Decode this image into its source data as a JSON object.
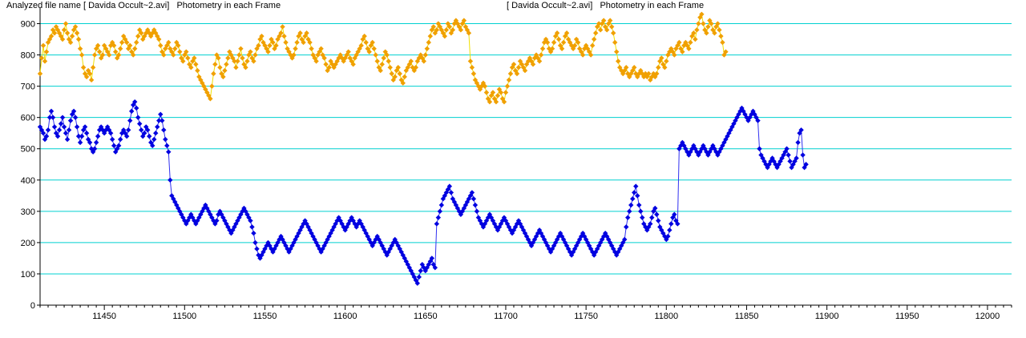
{
  "header": {
    "left": "Analyzed file name [ Davida Occult~2.avi]   Photometry in each Frame",
    "center": "[ Davida Occult~2.avi]   Photometry in each Frame"
  },
  "colors": {
    "grid": "#00d0d0",
    "series_target": "#f0a000",
    "series_target_line": "#f0e000",
    "series_comparison": "#0000e0",
    "series_comparison_line": "#3030f0"
  },
  "chart_data": {
    "type": "scatter",
    "title": "",
    "xlabel": "",
    "ylabel": "",
    "xlim": [
      11410,
      12015
    ],
    "ylim": [
      0,
      950
    ],
    "x_ticks": [
      11450,
      11500,
      11550,
      11600,
      11650,
      11700,
      11750,
      11800,
      11850,
      11900,
      11950,
      12000
    ],
    "y_ticks": [
      0,
      100,
      200,
      300,
      400,
      500,
      600,
      700,
      800,
      900
    ],
    "grid": true,
    "legend": "none",
    "x_start": 11410,
    "x_step": 1,
    "series": [
      {
        "style": "markers-with-line",
        "values": [
          740,
          790,
          830,
          780,
          810,
          840,
          850,
          860,
          880,
          870,
          890,
          880,
          870,
          860,
          850,
          880,
          900,
          870,
          850,
          840,
          860,
          880,
          890,
          870,
          850,
          820,
          800,
          760,
          740,
          730,
          750,
          740,
          720,
          760,
          800,
          820,
          830,
          810,
          790,
          800,
          830,
          820,
          810,
          800,
          830,
          840,
          830,
          810,
          790,
          800,
          820,
          840,
          860,
          850,
          840,
          820,
          830,
          810,
          800,
          820,
          840,
          860,
          880,
          870,
          850,
          860,
          870,
          880,
          870,
          860,
          870,
          880,
          870,
          860,
          850,
          830,
          810,
          800,
          820,
          830,
          840,
          820,
          810,
          800,
          820,
          840,
          830,
          810,
          790,
          780,
          800,
          810,
          790,
          770,
          760,
          780,
          790,
          770,
          750,
          730,
          720,
          710,
          700,
          690,
          680,
          670,
          660,
          700,
          740,
          770,
          800,
          790,
          760,
          740,
          730,
          750,
          770,
          790,
          810,
          800,
          790,
          780,
          760,
          780,
          800,
          820,
          790,
          770,
          760,
          780,
          800,
          810,
          790,
          780,
          800,
          820,
          830,
          850,
          860,
          840,
          830,
          820,
          810,
          830,
          850,
          840,
          820,
          830,
          850,
          860,
          870,
          890,
          860,
          840,
          820,
          810,
          800,
          790,
          800,
          820,
          840,
          860,
          870,
          850,
          840,
          860,
          870,
          850,
          840,
          820,
          800,
          790,
          780,
          800,
          810,
          820,
          800,
          790,
          770,
          750,
          760,
          780,
          770,
          760,
          770,
          780,
          790,
          800,
          790,
          780,
          790,
          800,
          810,
          790,
          780,
          770,
          790,
          800,
          810,
          820,
          830,
          850,
          860,
          840,
          820,
          810,
          830,
          840,
          820,
          800,
          780,
          760,
          750,
          770,
          790,
          810,
          800,
          780,
          760,
          740,
          720,
          730,
          750,
          760,
          740,
          720,
          710,
          730,
          750,
          760,
          770,
          780,
          760,
          750,
          760,
          780,
          790,
          800,
          790,
          780,
          800,
          820,
          840,
          860,
          880,
          890,
          870,
          880,
          900,
          890,
          880,
          870,
          860,
          880,
          900,
          890,
          870,
          880,
          900,
          910,
          900,
          890,
          880,
          900,
          910,
          890,
          880,
          870,
          780,
          760,
          740,
          720,
          710,
          700,
          690,
          700,
          710,
          700,
          680,
          660,
          650,
          670,
          680,
          660,
          650,
          670,
          690,
          680,
          660,
          650,
          680,
          700,
          720,
          740,
          760,
          770,
          750,
          740,
          760,
          780,
          770,
          760,
          750,
          770,
          780,
          790,
          780,
          770,
          790,
          800,
          790,
          780,
          800,
          820,
          840,
          850,
          840,
          820,
          810,
          820,
          840,
          860,
          870,
          850,
          830,
          820,
          840,
          860,
          870,
          850,
          840,
          830,
          820,
          830,
          850,
          840,
          820,
          810,
          800,
          820,
          830,
          820,
          810,
          800,
          830,
          850,
          870,
          890,
          900,
          880,
          900,
          910,
          890,
          880,
          900,
          910,
          890,
          870,
          840,
          810,
          780,
          760,
          750,
          740,
          750,
          760,
          740,
          730,
          740,
          750,
          760,
          740,
          730,
          740,
          750,
          740,
          730,
          740,
          730,
          740,
          720,
          730,
          740,
          730,
          740,
          760,
          780,
          790,
          770,
          760,
          780,
          800,
          810,
          820,
          810,
          800,
          820,
          830,
          840,
          820,
          810,
          830,
          840,
          830,
          820,
          840,
          860,
          870,
          850,
          880,
          900,
          920,
          930,
          900,
          880,
          870,
          890,
          910,
          900,
          880,
          870,
          890,
          900,
          880,
          860,
          840,
          800,
          810
        ]
      },
      {
        "style": "markers-with-line",
        "values": [
          570,
          560,
          550,
          530,
          540,
          560,
          600,
          620,
          600,
          570,
          550,
          540,
          560,
          580,
          600,
          570,
          550,
          530,
          560,
          590,
          610,
          620,
          600,
          570,
          540,
          520,
          540,
          560,
          570,
          550,
          530,
          520,
          500,
          490,
          500,
          520,
          540,
          560,
          570,
          560,
          550,
          560,
          570,
          560,
          550,
          530,
          510,
          490,
          500,
          510,
          530,
          550,
          560,
          550,
          540,
          560,
          590,
          620,
          640,
          650,
          630,
          600,
          580,
          560,
          540,
          550,
          570,
          560,
          540,
          520,
          510,
          530,
          550,
          570,
          590,
          610,
          590,
          560,
          530,
          510,
          490,
          400,
          350,
          340,
          330,
          320,
          310,
          300,
          290,
          280,
          270,
          260,
          270,
          280,
          290,
          280,
          270,
          260,
          270,
          280,
          290,
          300,
          310,
          320,
          310,
          300,
          290,
          280,
          270,
          260,
          270,
          290,
          300,
          290,
          280,
          270,
          260,
          250,
          240,
          230,
          240,
          250,
          260,
          270,
          280,
          290,
          300,
          310,
          300,
          290,
          280,
          270,
          250,
          230,
          200,
          180,
          160,
          150,
          160,
          170,
          180,
          190,
          200,
          190,
          180,
          170,
          180,
          190,
          200,
          210,
          220,
          210,
          200,
          190,
          180,
          170,
          180,
          190,
          200,
          210,
          220,
          230,
          240,
          250,
          260,
          270,
          260,
          250,
          240,
          230,
          220,
          210,
          200,
          190,
          180,
          170,
          180,
          190,
          200,
          210,
          220,
          230,
          240,
          250,
          260,
          270,
          280,
          270,
          260,
          250,
          240,
          250,
          260,
          270,
          280,
          270,
          260,
          250,
          260,
          270,
          260,
          250,
          240,
          230,
          220,
          210,
          200,
          190,
          200,
          210,
          220,
          210,
          200,
          190,
          180,
          170,
          160,
          170,
          180,
          190,
          200,
          210,
          200,
          190,
          180,
          170,
          160,
          150,
          140,
          130,
          120,
          110,
          100,
          90,
          80,
          70,
          90,
          110,
          130,
          120,
          110,
          120,
          130,
          140,
          150,
          130,
          120,
          260,
          280,
          300,
          320,
          340,
          350,
          360,
          370,
          380,
          360,
          340,
          330,
          320,
          310,
          300,
          290,
          300,
          310,
          320,
          330,
          340,
          350,
          360,
          340,
          320,
          300,
          280,
          270,
          260,
          250,
          260,
          270,
          280,
          290,
          280,
          270,
          260,
          250,
          240,
          250,
          260,
          270,
          280,
          270,
          260,
          250,
          240,
          230,
          240,
          250,
          260,
          270,
          260,
          250,
          240,
          230,
          220,
          210,
          200,
          190,
          200,
          210,
          220,
          230,
          240,
          230,
          220,
          210,
          200,
          190,
          180,
          170,
          180,
          190,
          200,
          210,
          220,
          230,
          220,
          210,
          200,
          190,
          180,
          170,
          160,
          170,
          180,
          190,
          200,
          210,
          220,
          230,
          220,
          210,
          200,
          190,
          180,
          170,
          160,
          170,
          180,
          190,
          200,
          210,
          220,
          230,
          220,
          210,
          200,
          190,
          180,
          170,
          160,
          170,
          180,
          190,
          200,
          210,
          250,
          280,
          300,
          320,
          340,
          360,
          380,
          350,
          320,
          300,
          280,
          260,
          250,
          240,
          250,
          260,
          280,
          300,
          310,
          290,
          270,
          250,
          240,
          230,
          220,
          210,
          220,
          240,
          260,
          280,
          290,
          270,
          260,
          500,
          510,
          520,
          510,
          500,
          490,
          480,
          490,
          500,
          510,
          500,
          490,
          480,
          490,
          500,
          510,
          500,
          490,
          480,
          490,
          500,
          510,
          500,
          490,
          480,
          490,
          500,
          510,
          520,
          530,
          540,
          550,
          560,
          570,
          580,
          590,
          600,
          610,
          620,
          630,
          620,
          610,
          600,
          590,
          600,
          610,
          620,
          610,
          600,
          590,
          500,
          480,
          470,
          460,
          450,
          440,
          450,
          460,
          470,
          460,
          450,
          440,
          450,
          460,
          470,
          480,
          490,
          500,
          480,
          460,
          440,
          450,
          460,
          470,
          520,
          550,
          560,
          480,
          440,
          450
        ]
      }
    ]
  }
}
